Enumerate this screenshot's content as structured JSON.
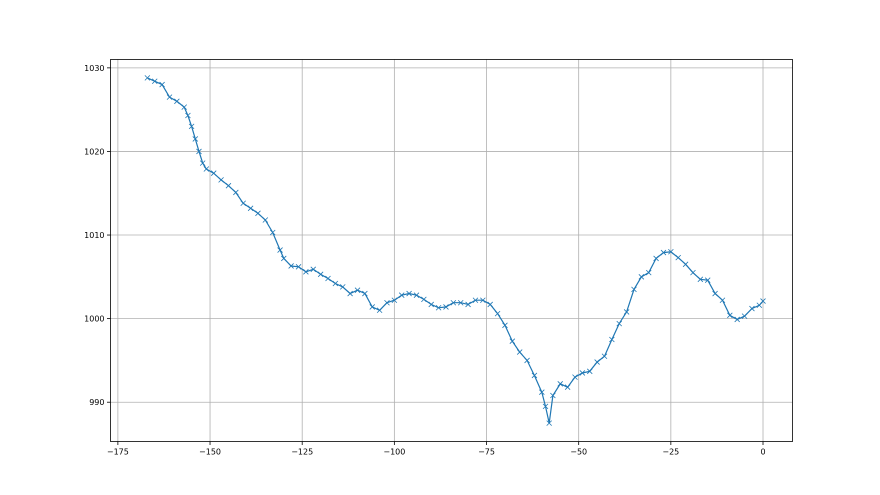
{
  "chart_data": {
    "type": "line",
    "title": "",
    "xlabel": "",
    "ylabel": "",
    "xlim": [
      -177,
      8
    ],
    "ylim": [
      985.3,
      1031
    ],
    "grid": true,
    "marker": "x",
    "color": "#1f77b4",
    "x_ticks": [
      -175,
      -150,
      -125,
      -100,
      -75,
      -50,
      -25,
      0
    ],
    "x_tick_labels": [
      "−175",
      "−150",
      "−125",
      "−100",
      "−75",
      "−50",
      "−25",
      "0"
    ],
    "y_ticks": [
      990,
      1000,
      1010,
      1020,
      1030
    ],
    "y_tick_labels": [
      "990",
      "1000",
      "1010",
      "1020",
      "1030"
    ],
    "series": [
      {
        "x": [
          -167,
          -165,
          -163,
          -161,
          -159,
          -157,
          -156,
          -155,
          -154,
          -153,
          -152,
          -151,
          -149,
          -147,
          -145,
          -143,
          -141,
          -139,
          -137,
          -135,
          -133,
          -131,
          -130,
          -128,
          -126,
          -124,
          -122,
          -120,
          -118,
          -116,
          -114,
          -112,
          -110,
          -108,
          -106,
          -104,
          -102,
          -100,
          -98,
          -96,
          -94,
          -92,
          -90,
          -88,
          -86,
          -84,
          -82,
          -80,
          -78,
          -76,
          -74,
          -72,
          -70,
          -68,
          -66,
          -64,
          -62,
          -60,
          -59,
          -58,
          -57,
          -55,
          -53,
          -51,
          -49,
          -47,
          -45,
          -43,
          -41,
          -39,
          -37,
          -35,
          -33,
          -31,
          -29,
          -27,
          -25,
          -23,
          -21,
          -19,
          -17,
          -15,
          -13,
          -11,
          -9,
          -7,
          -5,
          -3,
          -1,
          0
        ],
        "y": [
          1028.8,
          1028.4,
          1028.0,
          1026.5,
          1026.0,
          1025.3,
          1024.3,
          1023.0,
          1021.5,
          1020.0,
          1018.6,
          1017.9,
          1017.4,
          1016.6,
          1015.9,
          1015.1,
          1013.8,
          1013.2,
          1012.6,
          1011.8,
          1010.3,
          1008.2,
          1007.2,
          1006.3,
          1006.2,
          1005.6,
          1005.9,
          1005.3,
          1004.8,
          1004.2,
          1003.8,
          1003.0,
          1003.4,
          1003.0,
          1001.4,
          1001.0,
          1001.9,
          1002.2,
          1002.8,
          1003.0,
          1002.8,
          1002.3,
          1001.7,
          1001.3,
          1001.4,
          1001.9,
          1001.9,
          1001.7,
          1002.2,
          1002.2,
          1001.7,
          1000.6,
          999.2,
          997.3,
          996.0,
          995.0,
          993.2,
          991.2,
          989.5,
          987.5,
          990.8,
          992.2,
          991.8,
          993.0,
          993.5,
          993.7,
          994.8,
          995.5,
          997.5,
          999.4,
          1000.8,
          1003.5,
          1005.0,
          1005.5,
          1007.2,
          1007.9,
          1008.0,
          1007.3,
          1006.5,
          1005.5,
          1004.7,
          1004.6,
          1003.0,
          1002.2,
          1000.4,
          999.9,
          1000.3,
          1001.2,
          1001.6,
          1002.1
        ]
      }
    ]
  }
}
